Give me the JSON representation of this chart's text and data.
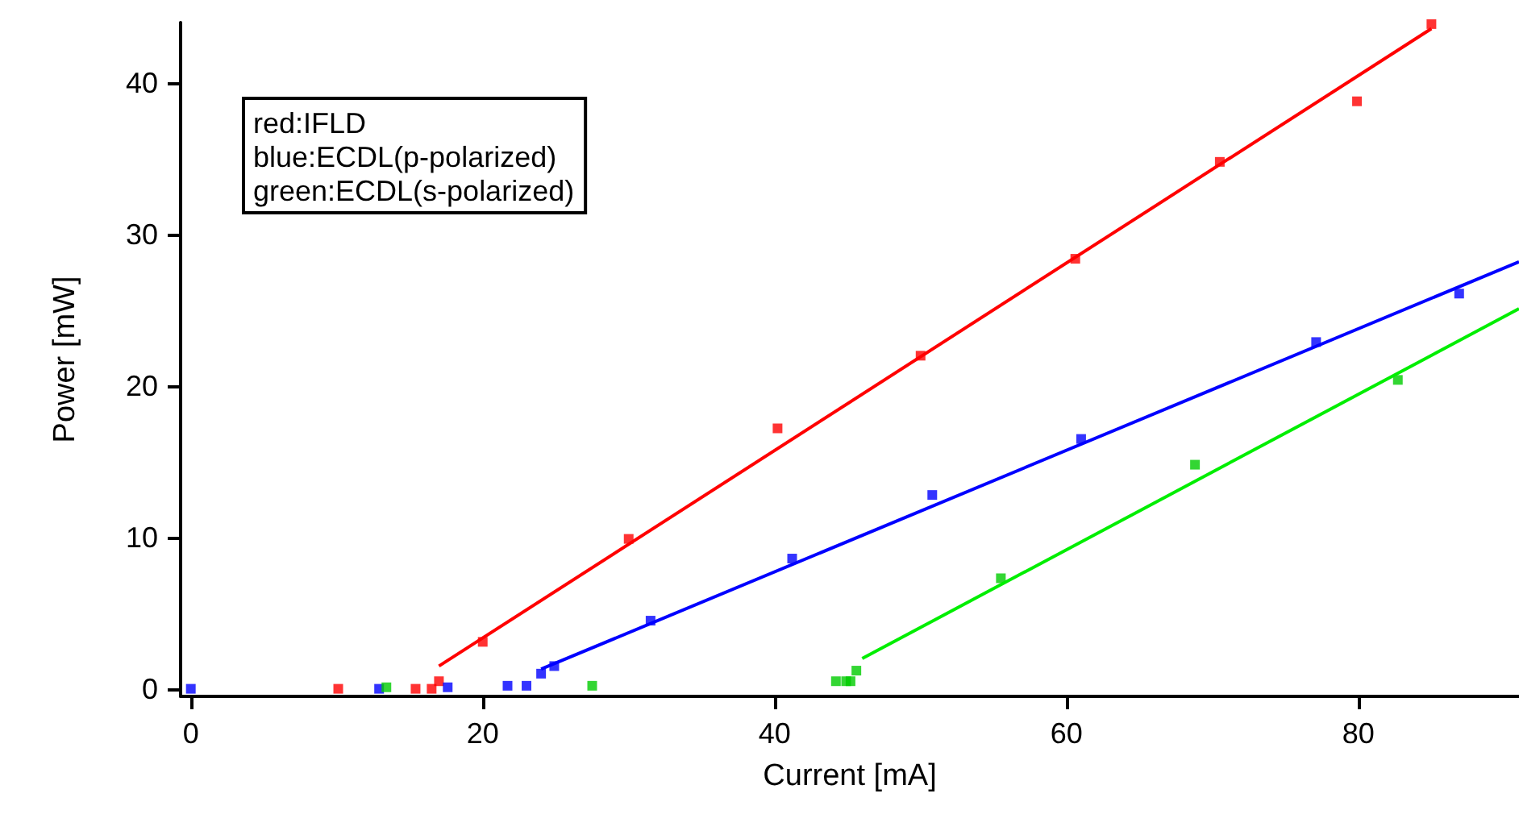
{
  "chart_data": {
    "type": "scatter",
    "xlabel": "Current [mA]",
    "ylabel": "Power [mW]",
    "xlim": [
      -0.7,
      91
    ],
    "ylim": [
      -0.5,
      44
    ],
    "xticks": [
      0,
      20,
      40,
      60,
      80
    ],
    "yticks": [
      0,
      10,
      20,
      30,
      40
    ],
    "grid": false,
    "marker": "square",
    "annotations": [
      "red:IFLD\nblue:ECDL(p-polarized)\ngreen:ECDL(s-polarized)"
    ],
    "series": [
      {
        "color": "#ff0000",
        "x": [
          10.1,
          15.4,
          16.5,
          17,
          20,
          30,
          40.2,
          50,
          60.6,
          70.5,
          79.9,
          85
        ],
        "values": [
          0,
          0,
          0,
          0.5,
          3.1,
          9.9,
          17.2,
          22,
          28.4,
          34.8,
          38.8,
          43.9
        ]
      },
      {
        "color": "#0000ff",
        "x": [
          0,
          12.9,
          17.6,
          21.7,
          23,
          24,
          24.9,
          31.5,
          41.2,
          50.8,
          61,
          77.1,
          86.9
        ],
        "values": [
          0,
          0,
          0.1,
          0.2,
          0.2,
          1,
          1.5,
          4.5,
          8.6,
          12.8,
          16.5,
          22.9,
          26.1
        ]
      },
      {
        "color": "#00cc00",
        "x": [
          13.4,
          27.5,
          44.2,
          44.9,
          45.2,
          45.6,
          55.5,
          68.8,
          82.7
        ],
        "values": [
          0.1,
          0.2,
          0.5,
          0.5,
          0.5,
          1.2,
          7.3,
          14.8,
          20.4
        ]
      },
      {
        "type": "line",
        "marker": "none",
        "color": "#ff0000",
        "line_style": "solid",
        "x": [
          17,
          85
        ],
        "values": [
          1.5,
          43.6
        ]
      },
      {
        "type": "line",
        "marker": "none",
        "color": "#0000ff",
        "line_style": "solid",
        "x": [
          24,
          91
        ],
        "values": [
          1.3,
          28.2
        ]
      },
      {
        "type": "line",
        "marker": "none",
        "color": "#00ee00",
        "line_style": "solid",
        "x": [
          46,
          91
        ],
        "values": [
          2,
          25.1
        ]
      }
    ]
  }
}
